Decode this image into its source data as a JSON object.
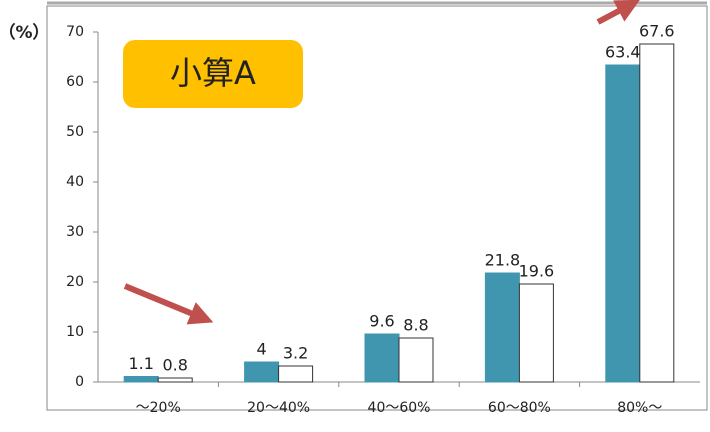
{
  "chart_data": {
    "type": "bar",
    "y_label": "（%）",
    "annotation": "小算A",
    "categories": [
      "～20%",
      "20～40%",
      "40～60%",
      "60～80%",
      "80%～"
    ],
    "series": [
      {
        "color": "#4096ae",
        "values": [
          1.1,
          4,
          9.6,
          21.8,
          63.4
        ]
      },
      {
        "color": "#ffffff",
        "values": [
          0.8,
          3.2,
          8.8,
          19.6,
          67.6
        ]
      }
    ],
    "ylim": [
      0,
      70
    ],
    "yticks": [
      0,
      10,
      20,
      30,
      40,
      50,
      60,
      70
    ],
    "grid": false
  }
}
